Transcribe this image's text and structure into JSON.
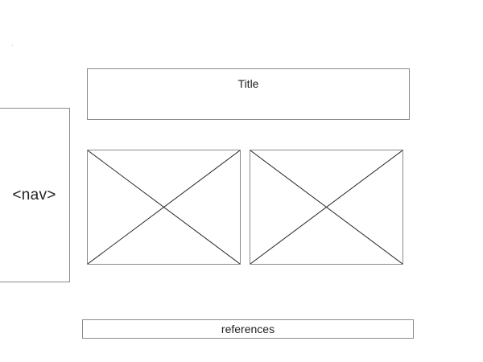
{
  "wireframe": {
    "nav": {
      "label": "<nav>"
    },
    "title": {
      "label": "Title"
    },
    "media": [
      {
        "kind": "image-placeholder"
      },
      {
        "kind": "image-placeholder"
      }
    ],
    "references": {
      "label": "references"
    }
  }
}
